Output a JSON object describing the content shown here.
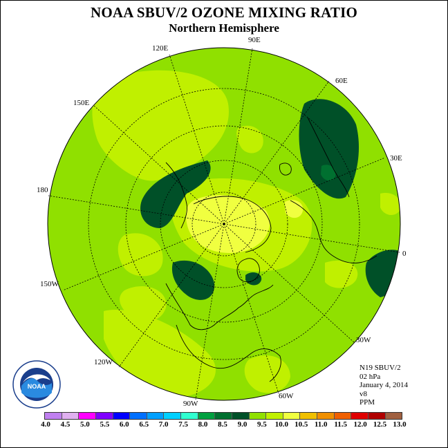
{
  "header": {
    "title": "NOAA SBUV/2 OZONE MIXING RATIO",
    "subtitle": "Northern Hemisphere"
  },
  "longitude_labels": {
    "lon_90e": "90E",
    "lon_120e": "120E",
    "lon_60e": "60E",
    "lon_150e": "150E",
    "lon_30e": "30E",
    "lon_180": "180",
    "lon_0": "0",
    "lon_150w": "150W",
    "lon_30w": "30W",
    "lon_120w": "120W",
    "lon_60w": "60W",
    "lon_90w": "90W"
  },
  "info": {
    "satellite": "N19 SBUV/2",
    "level": "02 hPa",
    "date": "January 4, 2014",
    "version": "v8",
    "units": "PPM"
  },
  "logo": {
    "name": "NOAA",
    "ring_text": "NATIONAL OCEANIC AND ATMOSPHERIC ADMINISTRATION · U.S. DEPARTMENT OF COMMERCE"
  },
  "colorbar": {
    "ticks": [
      "4.0",
      "4.5",
      "5.0",
      "5.5",
      "6.0",
      "6.5",
      "7.0",
      "7.5",
      "8.0",
      "8.5",
      "9.0",
      "9.5",
      "10.0",
      "10.5",
      "11.0",
      "11.5",
      "12.0",
      "12.5",
      "13.0"
    ],
    "colors": [
      "#c080f0",
      "#e0b0f0",
      "#ff00ff",
      "#8000ff",
      "#0000ff",
      "#0070ff",
      "#00a0ff",
      "#00d0ff",
      "#30ffd0",
      "#00a040",
      "#007030",
      "#005028",
      "#90e000",
      "#c0f000",
      "#f0ff40",
      "#f0c000",
      "#f09000",
      "#f06000",
      "#e00000",
      "#b00000",
      "#a06040"
    ]
  },
  "map_legend_levels": {
    "dark_green": 9.0,
    "lime": 9.5,
    "light_yellow_green": 10.0,
    "yellow": 10.5
  }
}
